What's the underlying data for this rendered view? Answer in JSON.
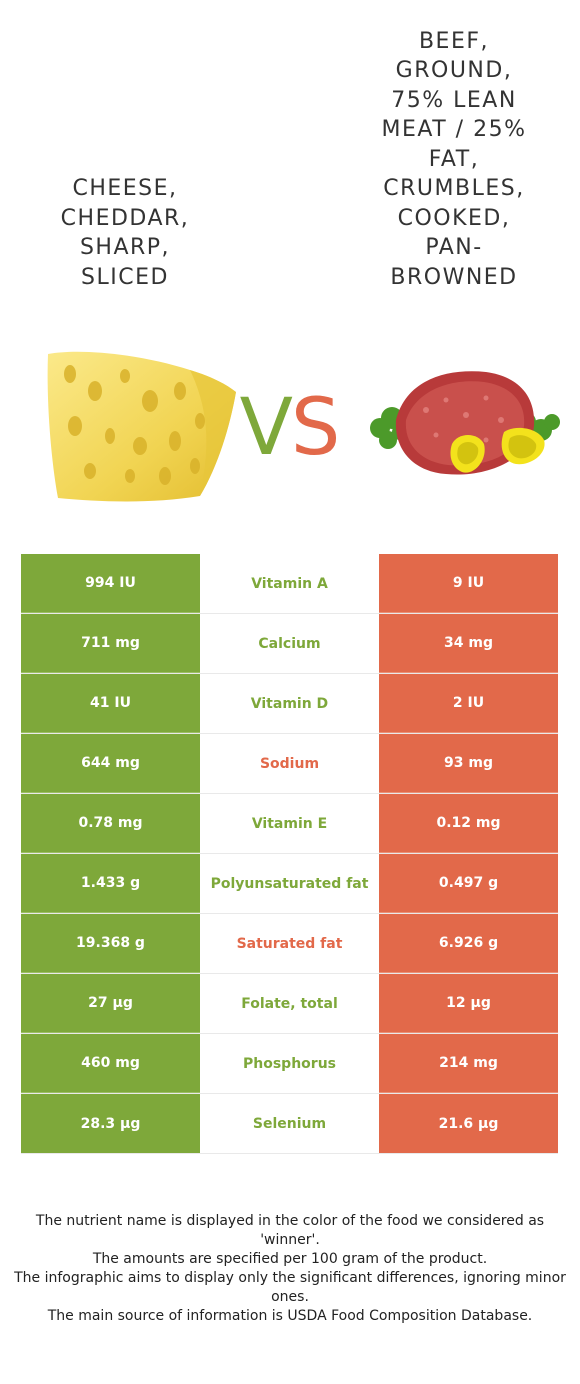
{
  "foods": {
    "left": {
      "name": "CHEESE, CHEDDAR, SHARP, SLICED",
      "color": "#7ea83a"
    },
    "right": {
      "name": "BEEF, GROUND, 75% LEAN MEAT / 25% FAT, CRUMBLES, COOKED, PAN-BROWNED",
      "color": "#e2694a"
    }
  },
  "vs": {
    "v": "V",
    "s": "S"
  },
  "rows": [
    {
      "left": "994 IU",
      "nutrient": "Vitamin A",
      "right": "9 IU",
      "winner": "left"
    },
    {
      "left": "711 mg",
      "nutrient": "Calcium",
      "right": "34 mg",
      "winner": "left"
    },
    {
      "left": "41 IU",
      "nutrient": "Vitamin D",
      "right": "2 IU",
      "winner": "left"
    },
    {
      "left": "644 mg",
      "nutrient": "Sodium",
      "right": "93 mg",
      "winner": "right"
    },
    {
      "left": "0.78 mg",
      "nutrient": "Vitamin E",
      "right": "0.12 mg",
      "winner": "left"
    },
    {
      "left": "1.433 g",
      "nutrient": "Polyunsaturated fat",
      "right": "0.497 g",
      "winner": "left"
    },
    {
      "left": "19.368 g",
      "nutrient": "Saturated fat",
      "right": "6.926 g",
      "winner": "right"
    },
    {
      "left": "27 µg",
      "nutrient": "Folate, total",
      "right": "12 µg",
      "winner": "left"
    },
    {
      "left": "460 mg",
      "nutrient": "Phosphorus",
      "right": "214 mg",
      "winner": "left"
    },
    {
      "left": "28.3 µg",
      "nutrient": "Selenium",
      "right": "21.6 µg",
      "winner": "left"
    }
  ],
  "footer": {
    "line1": "The nutrient name is displayed in the color of the food we considered as 'winner'.",
    "line2": "The amounts are specified per 100 gram of the product.",
    "line3": "The infographic aims to display only the significant differences, ignoring minor ones.",
    "line4": "The main source of information is USDA Food Composition Database."
  }
}
